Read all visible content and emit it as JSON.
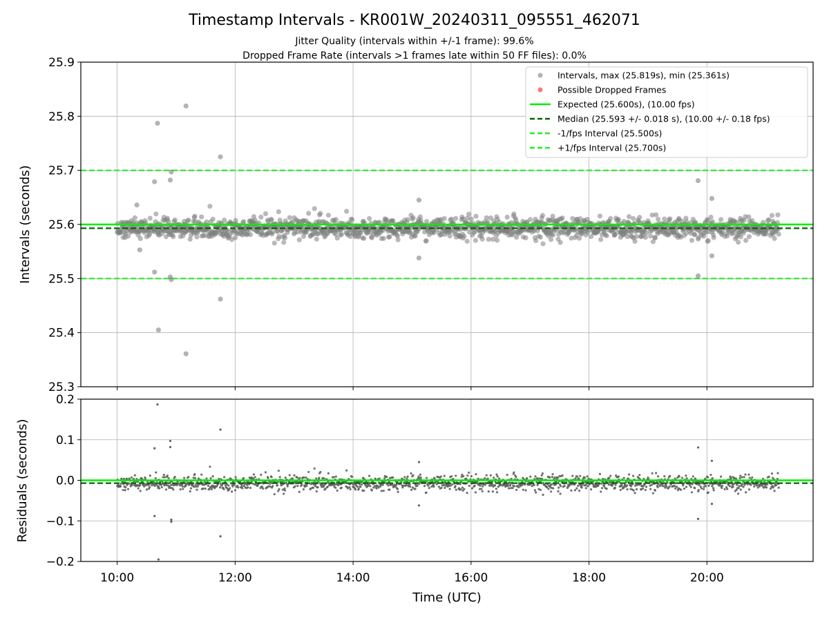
{
  "figure": {
    "title": "Timestamp Intervals - KR001W_20240311_095551_462071",
    "subtitle_1": "Jitter Quality (intervals within +/-1 frame): 99.6%",
    "subtitle_2": "Dropped Frame Rate (intervals >1 frames late within 50 FF files): 0.0%",
    "xlabel": "Time (UTC)"
  },
  "colors": {
    "points": "#808080",
    "dropped": "#ff5555",
    "expected": "#00ee00",
    "median": "#006400",
    "bounds": "#22ee22",
    "grid": "#b0b0b0"
  },
  "chart_data": [
    {
      "type": "scatter",
      "name": "intervals",
      "ylabel": "Intervals (seconds)",
      "xlim": [
        "09:23",
        "21:48"
      ],
      "ylim": [
        25.3,
        25.9
      ],
      "x_ticks": [
        "10:00",
        "12:00",
        "14:00",
        "16:00",
        "18:00",
        "20:00"
      ],
      "y_ticks": [
        "25.3",
        "25.4",
        "25.5",
        "25.6",
        "25.7",
        "25.8",
        "25.9"
      ],
      "grid": true,
      "legend_position": "top-right",
      "legend": [
        "Intervals, max (25.819s), min (25.361s)",
        "Possible Dropped Frames",
        "Expected (25.600s), (10.00 fps)",
        "Median (25.593 +/- 0.018 s), (10.00 +/- 0.18 fps)",
        "-1/fps Interval (25.500s)",
        "+1/fps Interval (25.700s)"
      ],
      "reference_lines": {
        "expected": 25.6,
        "median": 25.593,
        "minus_1_fps": 25.5,
        "plus_1_fps": 25.7
      },
      "series": [
        {
          "name": "Intervals, max (25.819s), min (25.361s)",
          "time_range": [
            "10:00",
            "21:13"
          ],
          "count_approx": 1570,
          "median": 25.593,
          "spread_sd": 0.018,
          "points": [
            {
              "x": "10:38",
              "y": 25.679
            },
            {
              "x": "10:41",
              "y": 25.787
            },
            {
              "x": "10:42",
              "y": 25.405
            },
            {
              "x": "10:38",
              "y": 25.512
            },
            {
              "x": "10:54",
              "y": 25.682
            },
            {
              "x": "10:55",
              "y": 25.697
            },
            {
              "x": "10:55",
              "y": 25.498
            },
            {
              "x": "10:54",
              "y": 25.503
            },
            {
              "x": "11:10",
              "y": 25.819
            },
            {
              "x": "11:10",
              "y": 25.361
            },
            {
              "x": "11:45",
              "y": 25.725
            },
            {
              "x": "11:45",
              "y": 25.462
            },
            {
              "x": "15:07",
              "y": 25.645
            },
            {
              "x": "15:07",
              "y": 25.538
            },
            {
              "x": "19:51",
              "y": 25.681
            },
            {
              "x": "19:51",
              "y": 25.505
            },
            {
              "x": "20:05",
              "y": 25.648
            },
            {
              "x": "20:05",
              "y": 25.542
            },
            {
              "x": "10:20",
              "y": 25.636
            },
            {
              "x": "10:23",
              "y": 25.553
            }
          ]
        },
        {
          "name": "Possible Dropped Frames",
          "points": []
        }
      ]
    },
    {
      "type": "scatter",
      "name": "residuals",
      "ylabel": "Residuals (seconds)",
      "xlim": [
        "09:23",
        "21:48"
      ],
      "ylim": [
        -0.2,
        0.2
      ],
      "x_ticks": [
        "10:00",
        "12:00",
        "14:00",
        "16:00",
        "18:00",
        "20:00"
      ],
      "y_ticks": [
        "−0.2",
        "−0.1",
        "0.0",
        "0.1",
        "0.2"
      ],
      "grid": true,
      "reference_lines": {
        "zero": 0.0,
        "median_residual": -0.007
      },
      "series": [
        {
          "name": "residuals",
          "points": [
            {
              "x": "10:41",
              "y": 0.187
            },
            {
              "x": "10:42",
              "y": -0.195
            },
            {
              "x": "10:38",
              "y": 0.079
            },
            {
              "x": "10:38",
              "y": -0.088
            },
            {
              "x": "10:54",
              "y": 0.097
            },
            {
              "x": "10:54",
              "y": 0.082
            },
            {
              "x": "10:55",
              "y": -0.097
            },
            {
              "x": "10:55",
              "y": -0.102
            },
            {
              "x": "11:45",
              "y": 0.125
            },
            {
              "x": "11:45",
              "y": -0.138
            },
            {
              "x": "15:07",
              "y": 0.045
            },
            {
              "x": "15:07",
              "y": -0.062
            },
            {
              "x": "19:51",
              "y": 0.081
            },
            {
              "x": "19:51",
              "y": -0.095
            },
            {
              "x": "20:05",
              "y": 0.048
            },
            {
              "x": "20:05",
              "y": -0.058
            }
          ]
        }
      ]
    }
  ]
}
